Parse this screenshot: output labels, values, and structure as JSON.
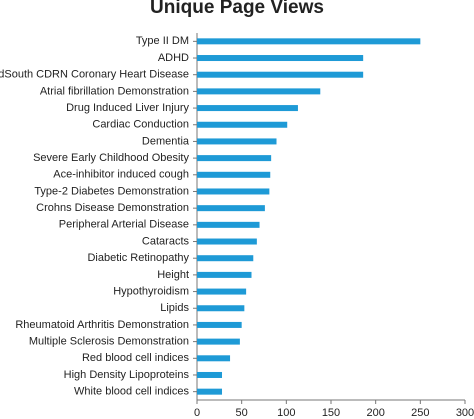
{
  "chart_data": {
    "type": "barh",
    "title": "Unique Page Views",
    "categories": [
      "Type II DM",
      "ADHD",
      "MidSouth CDRN Coronary Heart Disease",
      "Atrial fibrillation Demonstration",
      "Drug Induced Liver Injury",
      "Cardiac Conduction",
      "Dementia",
      "Severe Early Childhood Obesity",
      "Ace-inhibitor induced cough",
      "Type-2 Diabetes Demonstration",
      "Crohns Disease Demonstration",
      "Peripheral Arterial Disease",
      "Cataracts",
      "Diabetic Retinopathy",
      "Height",
      "Hypothyroidism",
      "Lipids",
      "Rheumatoid Arthritis Demonstration",
      "Multiple Sclerosis Demonstration",
      "Red blood cell indices",
      "High Density Lipoproteins",
      "White blood cell indices"
    ],
    "values": [
      250,
      186,
      186,
      138,
      113,
      101,
      89,
      83,
      82,
      81,
      76,
      70,
      67,
      63,
      61,
      55,
      53,
      50,
      48,
      37,
      28,
      28
    ],
    "color": "#1e9ad6",
    "xlim": [
      0,
      300
    ],
    "xticks": [
      0,
      50,
      100,
      150,
      200,
      250,
      300
    ]
  }
}
